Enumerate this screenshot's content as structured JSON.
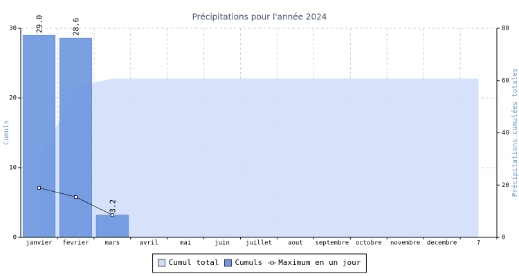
{
  "chart_data": {
    "type": "bar",
    "title": "Précipitations pour l'année 2024",
    "y_label": "Cumuls",
    "y2_label": "Précipitations cumulées totales",
    "categories": [
      "janvier",
      "fevrier",
      "mars",
      "avril",
      "mai",
      "juin",
      "juillet",
      "aout",
      "septembre",
      "octobre",
      "novembre",
      "decembre",
      "?"
    ],
    "ylim": [
      0,
      30
    ],
    "yticks": [
      0,
      10,
      20,
      30
    ],
    "y2lim": [
      0,
      80
    ],
    "y2ticks": [
      0,
      20,
      40,
      60,
      80
    ],
    "grid": true,
    "legend": "bottom",
    "series": [
      {
        "name": "Cumul total",
        "type": "area",
        "axis": "y2",
        "color": "#d3dff9",
        "values": [
          29,
          57.6,
          60.8,
          60.8,
          60.8,
          60.8,
          60.8,
          60.8,
          60.8,
          60.8,
          60.8,
          60.8,
          60.8
        ]
      },
      {
        "name": "Cumuls",
        "type": "bar",
        "color": "#6f98e0",
        "values": [
          29.0,
          28.6,
          3.2,
          null,
          null,
          null,
          null,
          null,
          null,
          null,
          null,
          null,
          null
        ],
        "value_labels": [
          "29.0",
          "28.6",
          "3.2",
          null,
          null,
          null,
          null,
          null,
          null,
          null,
          null,
          null,
          null
        ]
      },
      {
        "name": "Maximum en un jour",
        "type": "line",
        "color": "#000000",
        "values": [
          7.1,
          5.8,
          3.2,
          null,
          null,
          null,
          null,
          null,
          null,
          null,
          null,
          null,
          null
        ]
      }
    ]
  }
}
